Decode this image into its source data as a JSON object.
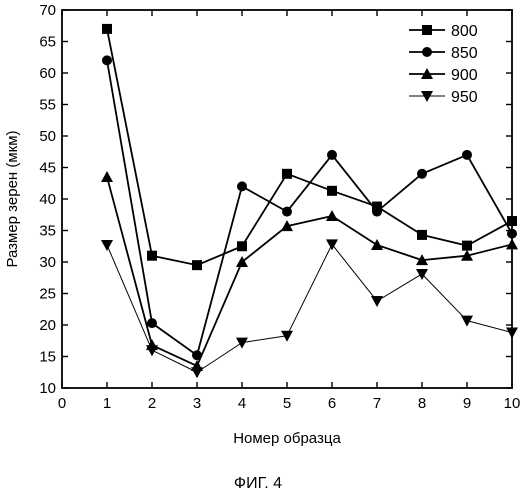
{
  "chart_data": {
    "type": "line",
    "caption": "ФИГ. 4",
    "xlabel": "Номер образца",
    "ylabel": "Размер зерен (мкм)",
    "xlim": [
      0,
      10
    ],
    "ylim": [
      10,
      70
    ],
    "x_ticks": [
      0,
      1,
      2,
      3,
      4,
      5,
      6,
      7,
      8,
      9,
      10
    ],
    "y_ticks": [
      10,
      15,
      20,
      25,
      30,
      35,
      40,
      45,
      50,
      55,
      60,
      65,
      70
    ],
    "grid": false,
    "legend_position": "top-right",
    "x": [
      1,
      2,
      3,
      4,
      5,
      6,
      7,
      8,
      9,
      10
    ],
    "series": [
      {
        "name": "800",
        "marker": "square",
        "line_width": 1.8,
        "values": [
          67,
          31,
          29.5,
          32.5,
          44,
          41.3,
          38.8,
          34.3,
          32.6,
          36.5
        ]
      },
      {
        "name": "850",
        "marker": "circle",
        "line_width": 1.8,
        "values": [
          62,
          20.3,
          15.2,
          42,
          38,
          47,
          38,
          44,
          47,
          34.5
        ]
      },
      {
        "name": "900",
        "marker": "triangle-up",
        "line_width": 1.8,
        "values": [
          43.5,
          16.8,
          13.5,
          30,
          35.7,
          37.3,
          32.7,
          30.3,
          31,
          32.8
        ]
      },
      {
        "name": "950",
        "marker": "triangle-down",
        "line_width": 1.0,
        "values": [
          32.7,
          16,
          12.5,
          17.2,
          18.3,
          32.8,
          23.8,
          28.1,
          20.7,
          18.8
        ]
      }
    ]
  }
}
